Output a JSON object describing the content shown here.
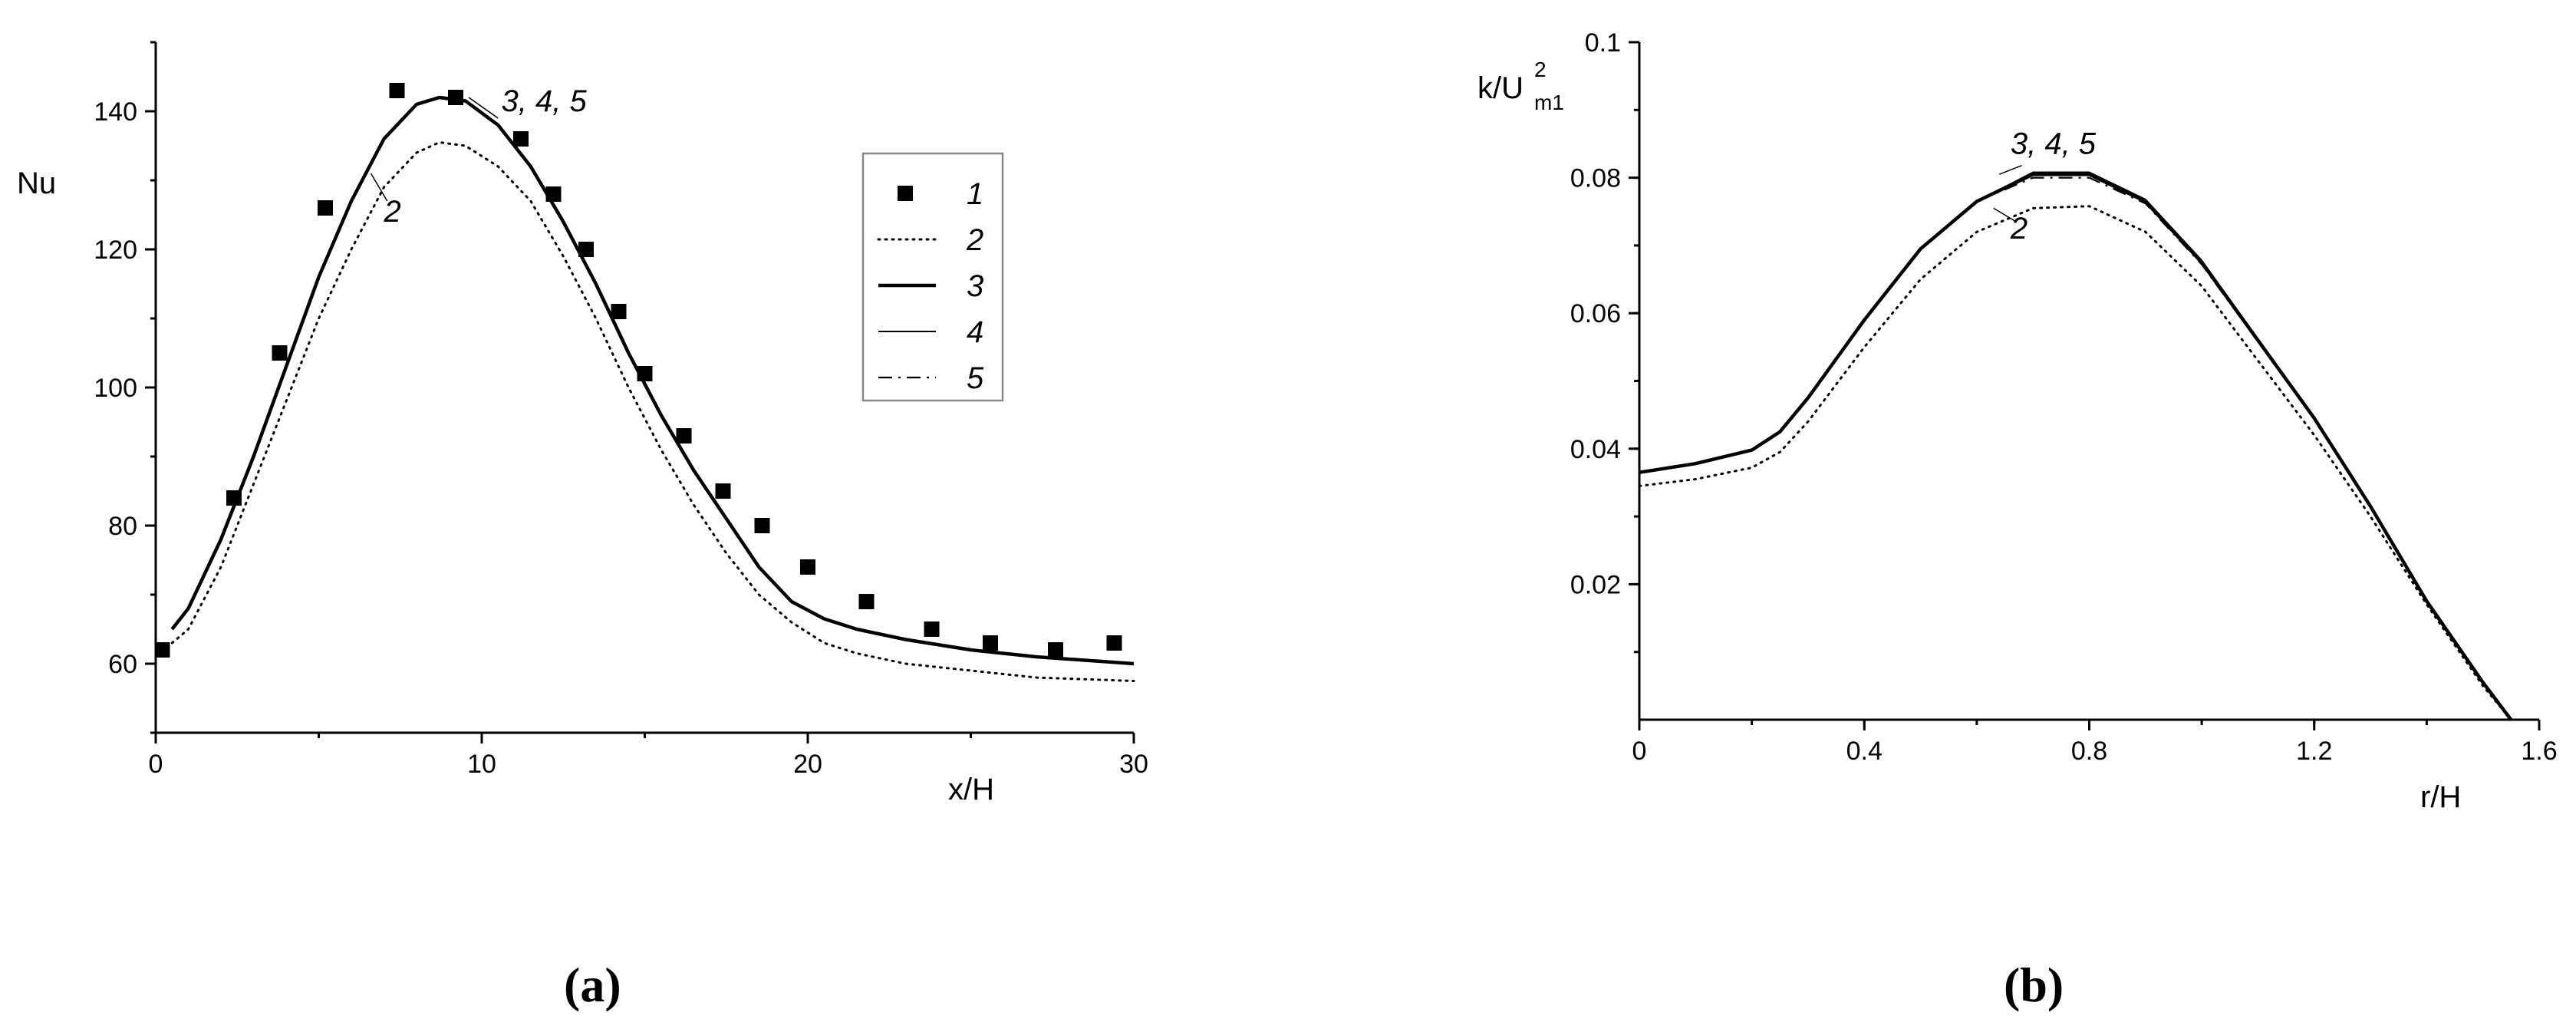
{
  "chart_data": [
    {
      "type": "line",
      "panel": "(a)",
      "xlabel": "x/H",
      "ylabel": "Nu",
      "xlim": [
        0,
        30
      ],
      "ylim": [
        50,
        150
      ],
      "xticks": [
        0,
        10,
        20,
        30
      ],
      "yticks": [
        60,
        80,
        100,
        120,
        140
      ],
      "legend": {
        "placement": "center-right",
        "entries": [
          "1",
          "2",
          "3",
          "4",
          "5"
        ]
      },
      "annotations": [
        {
          "text": "3, 4,  5",
          "x": 10.6,
          "y": 140
        },
        {
          "text": "2",
          "x": 7.0,
          "y": 124
        }
      ],
      "series": [
        {
          "name": "1",
          "style": "markers",
          "x": [
            0.2,
            2.4,
            3.8,
            5.2,
            7.4,
            9.2,
            11.2,
            12.2,
            13.2,
            14.2,
            15.0,
            16.2,
            17.4,
            18.6,
            20.0,
            21.8,
            23.8,
            25.6,
            27.6,
            29.4
          ],
          "y": [
            62,
            84,
            105,
            126,
            143,
            142,
            136,
            128,
            120,
            111,
            102,
            93,
            85,
            80,
            74,
            69,
            65,
            63,
            62,
            63
          ]
        },
        {
          "name": "2",
          "style": "dotted",
          "x": [
            0.5,
            1,
            2,
            3,
            4,
            5,
            6,
            7,
            8,
            8.7,
            9.5,
            10.5,
            11.5,
            12.5,
            13.5,
            14.5,
            15.5,
            16.5,
            17.5,
            18.5,
            19.5,
            20.5,
            21.5,
            23,
            25,
            27,
            30
          ],
          "y": [
            63,
            65,
            74,
            86,
            98,
            110,
            120,
            129,
            134,
            135.5,
            135,
            132,
            127,
            119,
            110,
            100,
            91,
            83,
            76,
            70,
            66,
            63,
            61.5,
            60,
            59,
            58,
            57.5
          ]
        },
        {
          "name": "3",
          "style": "solid-thick",
          "x": [
            0.5,
            1,
            2,
            3,
            4,
            5,
            6,
            7,
            8,
            8.7,
            9.5,
            10.5,
            11.5,
            12.5,
            13.5,
            14.5,
            15.5,
            16.5,
            17.5,
            18.5,
            19.5,
            20.5,
            21.5,
            23,
            25,
            27,
            30
          ],
          "y": [
            65,
            68,
            78,
            90,
            103,
            116,
            127,
            136,
            141,
            142,
            141.5,
            138,
            132,
            124,
            115,
            105,
            96,
            88,
            81,
            74,
            69,
            66.5,
            65,
            63.5,
            62,
            61,
            60
          ]
        },
        {
          "name": "4",
          "style": "solid-thin",
          "x": [
            0.5,
            1,
            2,
            3,
            4,
            5,
            6,
            7,
            8,
            8.7,
            9.5,
            10.5,
            11.5,
            12.5,
            13.5,
            14.5,
            15.5,
            16.5,
            17.5,
            18.5,
            19.5,
            20.5,
            21.5,
            23,
            25,
            27,
            30
          ],
          "y": [
            65,
            68,
            78,
            90,
            103,
            116,
            127,
            136,
            141,
            142,
            141.5,
            138,
            132,
            124,
            115,
            105,
            96,
            88,
            81,
            74,
            69,
            66.5,
            65,
            63.5,
            62,
            61,
            60
          ]
        },
        {
          "name": "5",
          "style": "dash-dot",
          "x": [
            0.5,
            1,
            2,
            3,
            4,
            5,
            6,
            7,
            8,
            8.7,
            9.5,
            10.5,
            11.5,
            12.5,
            13.5,
            14.5,
            15.5,
            16.5,
            17.5,
            18.5,
            19.5,
            20.5,
            21.5,
            23,
            25,
            27,
            30
          ],
          "y": [
            65,
            68,
            78,
            90,
            103,
            116,
            127,
            136,
            141,
            142,
            141.5,
            138,
            132,
            124,
            115,
            105,
            96,
            88,
            81,
            74,
            69,
            66.5,
            65,
            63.5,
            62,
            61,
            60
          ]
        }
      ]
    },
    {
      "type": "line",
      "panel": "(b)",
      "xlabel": "r/H",
      "ylabel": "k/U",
      "ylabel_sup": "2",
      "ylabel_sub": "m1",
      "xlim": [
        0,
        1.6
      ],
      "ylim": [
        0,
        0.1
      ],
      "xticks": [
        0,
        0.4,
        0.8,
        1.2,
        1.6
      ],
      "yticks": [
        0.02,
        0.04,
        0.06,
        0.08,
        0.1
      ],
      "annotations": [
        {
          "text": "3,  4,  5",
          "x": 0.66,
          "y": 0.0835
        },
        {
          "text": "2",
          "x": 0.66,
          "y": 0.071
        }
      ],
      "series": [
        {
          "name": "2",
          "style": "dotted",
          "x": [
            0,
            0.1,
            0.2,
            0.25,
            0.3,
            0.4,
            0.5,
            0.6,
            0.7,
            0.8,
            0.9,
            1.0,
            1.1,
            1.2,
            1.3,
            1.4,
            1.5,
            1.55
          ],
          "y": [
            0.0345,
            0.0355,
            0.0372,
            0.0395,
            0.044,
            0.055,
            0.065,
            0.072,
            0.0755,
            0.0758,
            0.072,
            0.064,
            0.053,
            0.042,
            0.03,
            0.017,
            0.005,
            0.0
          ]
        },
        {
          "name": "3",
          "style": "solid-thick",
          "x": [
            0,
            0.1,
            0.2,
            0.25,
            0.3,
            0.4,
            0.5,
            0.6,
            0.7,
            0.8,
            0.9,
            1.0,
            1.1,
            1.2,
            1.3,
            1.4,
            1.5,
            1.55
          ],
          "y": [
            0.0365,
            0.0378,
            0.0398,
            0.0425,
            0.0475,
            0.059,
            0.0695,
            0.0765,
            0.0805,
            0.0805,
            0.0765,
            0.0675,
            0.056,
            0.0445,
            0.0315,
            0.0175,
            0.0055,
            0.0
          ]
        },
        {
          "name": "4",
          "style": "solid-thin",
          "x": [
            0,
            0.1,
            0.2,
            0.25,
            0.3,
            0.4,
            0.5,
            0.6,
            0.7,
            0.8,
            0.9,
            1.0,
            1.1,
            1.2,
            1.3,
            1.4,
            1.5,
            1.55
          ],
          "y": [
            0.0365,
            0.0378,
            0.0398,
            0.0425,
            0.0475,
            0.059,
            0.0695,
            0.0765,
            0.0808,
            0.0808,
            0.0768,
            0.0678,
            0.0562,
            0.0447,
            0.0316,
            0.0176,
            0.0055,
            0.0
          ]
        },
        {
          "name": "5",
          "style": "dash-dot",
          "x": [
            0,
            0.1,
            0.2,
            0.25,
            0.3,
            0.4,
            0.5,
            0.6,
            0.7,
            0.8,
            0.9,
            1.0,
            1.1,
            1.2,
            1.3,
            1.4,
            1.5,
            1.55
          ],
          "y": [
            0.0365,
            0.0378,
            0.0398,
            0.0425,
            0.0475,
            0.059,
            0.0695,
            0.0765,
            0.08,
            0.08,
            0.0762,
            0.0672,
            0.0558,
            0.0443,
            0.0314,
            0.0174,
            0.0054,
            0.0
          ]
        }
      ]
    }
  ]
}
